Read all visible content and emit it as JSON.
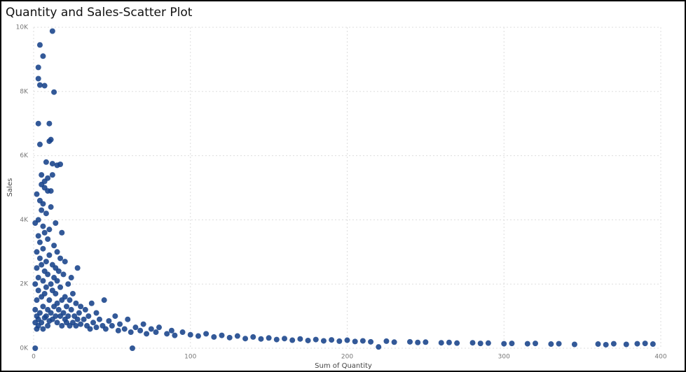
{
  "chart_data": {
    "type": "scatter",
    "title": "Quantity and Sales-Scatter Plot",
    "x_label": "Sum of Quantity",
    "y_label": "Sales",
    "color": "#17428a",
    "grid": true,
    "xlim": [
      0,
      400
    ],
    "xticks": [
      0,
      100,
      200,
      300,
      400
    ],
    "ylim": [
      0,
      10000
    ],
    "yticks": [
      {
        "value": 0,
        "label": "0K"
      },
      {
        "value": 2000,
        "label": "2K"
      },
      {
        "value": 4000,
        "label": "4K"
      },
      {
        "value": 6000,
        "label": "6K"
      },
      {
        "value": 8000,
        "label": "8K"
      },
      {
        "value": 10000,
        "label": "10K"
      }
    ],
    "x": [
      12,
      4,
      6,
      3,
      3,
      4,
      7,
      13,
      3,
      10,
      11,
      4,
      10,
      8,
      12,
      17,
      5,
      9,
      1,
      1,
      1,
      2,
      2,
      2,
      2,
      2,
      3,
      3,
      3,
      3,
      3,
      4,
      4,
      4,
      4,
      5,
      5,
      5,
      5,
      5,
      6,
      6,
      6,
      6,
      6,
      7,
      7,
      7,
      7,
      7,
      8,
      8,
      8,
      8,
      9,
      9,
      9,
      9,
      10,
      10,
      10,
      10,
      11,
      11,
      11,
      12,
      12,
      12,
      12,
      13,
      13,
      13,
      14,
      14,
      14,
      14,
      15,
      15,
      15,
      15,
      16,
      16,
      17,
      17,
      17,
      18,
      18,
      18,
      19,
      19,
      20,
      20,
      20,
      21,
      21,
      22,
      22,
      23,
      23,
      24,
      24,
      25,
      25,
      26,
      27,
      27,
      28,
      28,
      29,
      30,
      30,
      32,
      33,
      34,
      35,
      36,
      37,
      38,
      40,
      40,
      42,
      44,
      45,
      46,
      48,
      50,
      52,
      54,
      55,
      58,
      60,
      62,
      63,
      65,
      68,
      70,
      72,
      75,
      78,
      80,
      85,
      88,
      90,
      95,
      100,
      105,
      110,
      115,
      120,
      125,
      130,
      135,
      140,
      145,
      150,
      155,
      160,
      165,
      170,
      175,
      180,
      185,
      190,
      195,
      200,
      205,
      210,
      215,
      220,
      225,
      230,
      240,
      245,
      250,
      260,
      265,
      270,
      280,
      285,
      290,
      300,
      305,
      315,
      320,
      330,
      335,
      345,
      360,
      365,
      370,
      378,
      385,
      390,
      395,
      1,
      2,
      3,
      1,
      6,
      9,
      15,
      7,
      11
    ],
    "values": [
      9880,
      9450,
      9100,
      8750,
      8400,
      8200,
      8180,
      7980,
      7000,
      7000,
      6500,
      6350,
      6450,
      5800,
      5750,
      5730,
      5400,
      5300,
      1200,
      2000,
      3900,
      1000,
      1500,
      2500,
      4800,
      3000,
      900,
      1800,
      3500,
      4000,
      2200,
      1100,
      2800,
      4600,
      3300,
      800,
      1600,
      2600,
      4300,
      5100,
      1300,
      2100,
      3100,
      3800,
      4500,
      950,
      1700,
      2400,
      3600,
      5000,
      1000,
      1900,
      2700,
      4200,
      1200,
      2300,
      3400,
      4900,
      850,
      1500,
      2900,
      3700,
      1100,
      2000,
      4400,
      900,
      1800,
      2600,
      5400,
      1300,
      2200,
      3200,
      1000,
      1700,
      2500,
      3900,
      800,
      1400,
      2100,
      3000,
      1200,
      2400,
      1000,
      1900,
      2800,
      700,
      1500,
      3600,
      1100,
      2300,
      900,
      1600,
      2700,
      800,
      1300,
      1000,
      2000,
      700,
      1500,
      1200,
      2200,
      800,
      1700,
      1000,
      700,
      1400,
      900,
      2500,
      1100,
      750,
      1300,
      900,
      1200,
      700,
      1000,
      600,
      1400,
      800,
      650,
      1100,
      900,
      700,
      1500,
      600,
      850,
      700,
      1000,
      550,
      750,
      600,
      900,
      500,
      0,
      650,
      550,
      750,
      450,
      600,
      500,
      650,
      450,
      550,
      400,
      500,
      420,
      380,
      450,
      350,
      400,
      330,
      380,
      300,
      350,
      290,
      320,
      270,
      300,
      250,
      290,
      240,
      270,
      230,
      260,
      220,
      250,
      210,
      230,
      200,
      40,
      220,
      190,
      200,
      180,
      190,
      170,
      180,
      160,
      170,
      150,
      160,
      140,
      150,
      140,
      150,
      130,
      140,
      120,
      130,
      110,
      140,
      120,
      140,
      150,
      130,
      0,
      600,
      700,
      800,
      600,
      700,
      5700,
      5200,
      4900
    ]
  }
}
